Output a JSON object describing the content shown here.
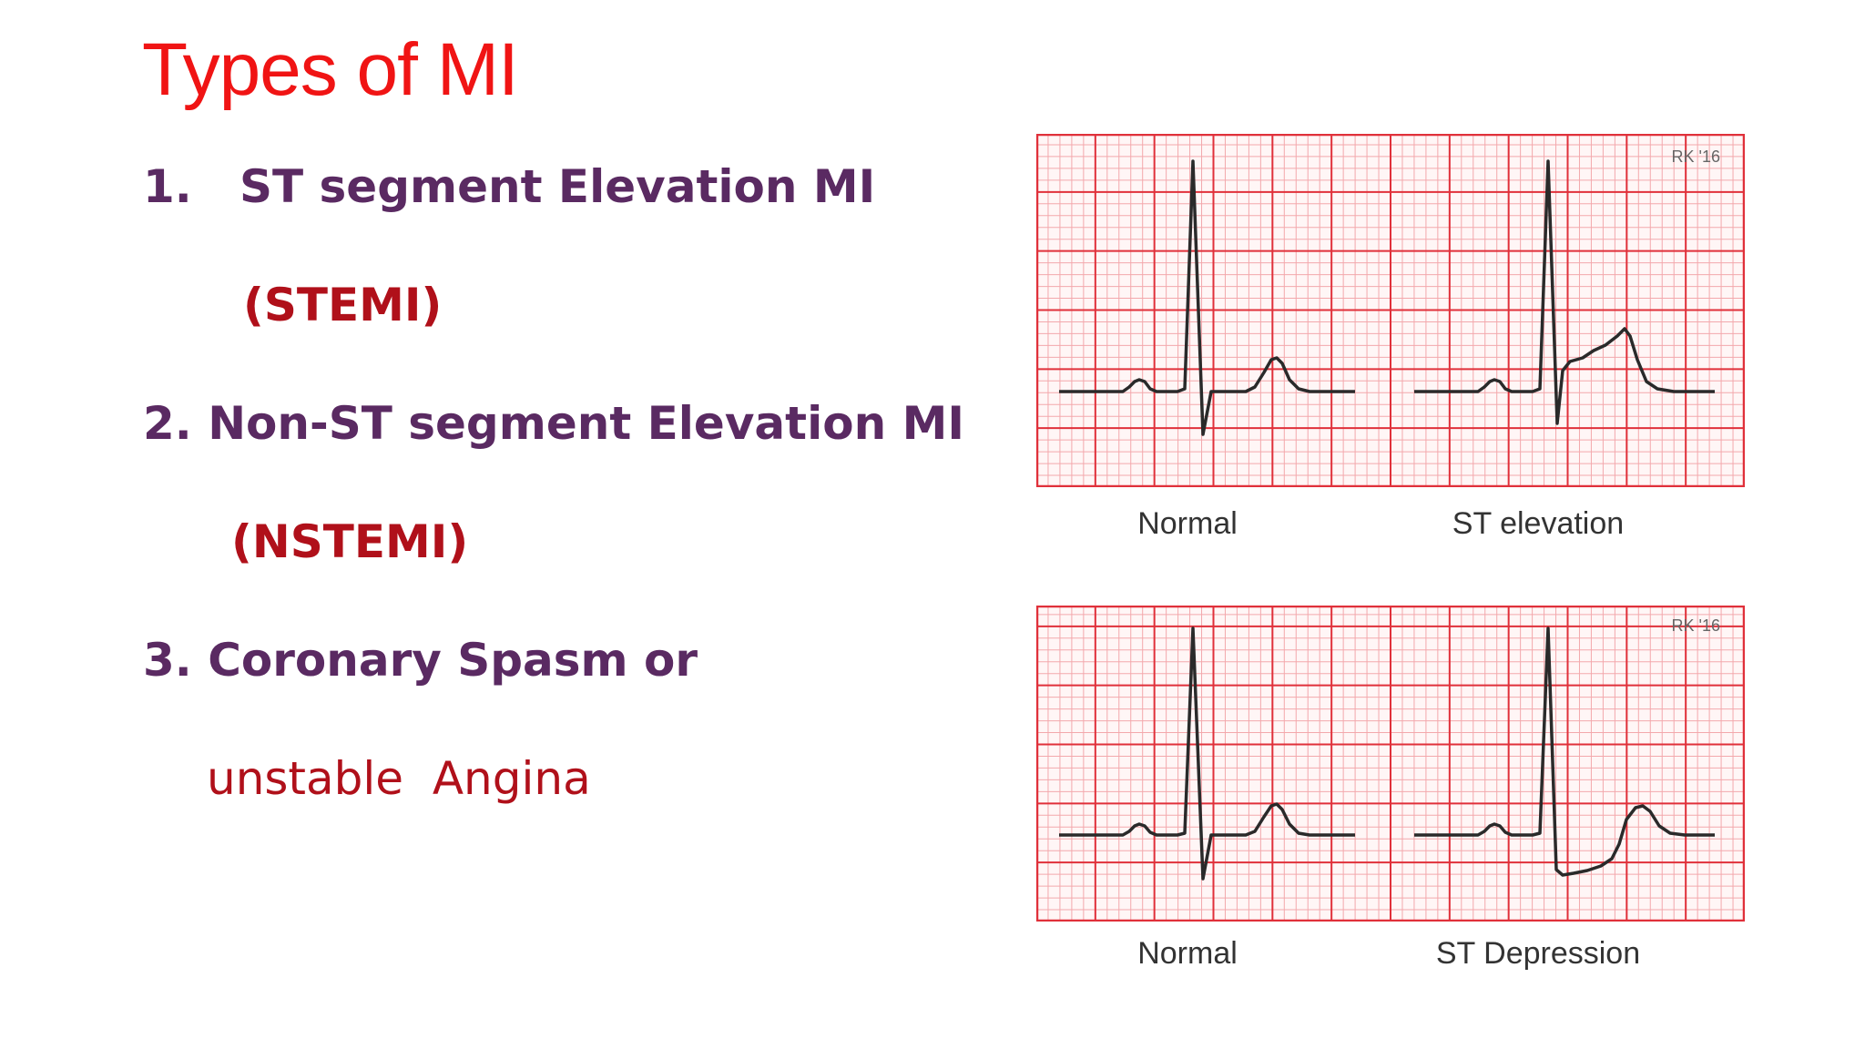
{
  "slide": {
    "title": "Types of MI",
    "items": [
      {
        "label": "1.   ST segment Elevation MI",
        "abbr": "(STEMI)"
      },
      {
        "label": "2. Non-ST segment Elevation MI",
        "abbr": "(NSTEMI)"
      },
      {
        "label": "3. Coronary Spasm or",
        "abbr": "unstable  Angina"
      }
    ]
  },
  "figures": {
    "top": {
      "watermark": "RK '16",
      "left_caption": "Normal",
      "right_caption": "ST elevation"
    },
    "bottom": {
      "watermark": "RK '16",
      "left_caption": "Normal",
      "right_caption": "ST Depression"
    }
  },
  "colors": {
    "title": "#f01414",
    "heading": "#5a2a62",
    "abbr": "#b0101a",
    "grid_major": "#e0303a",
    "grid_minor": "#f3a8ac",
    "trace": "#2a2a2a"
  }
}
